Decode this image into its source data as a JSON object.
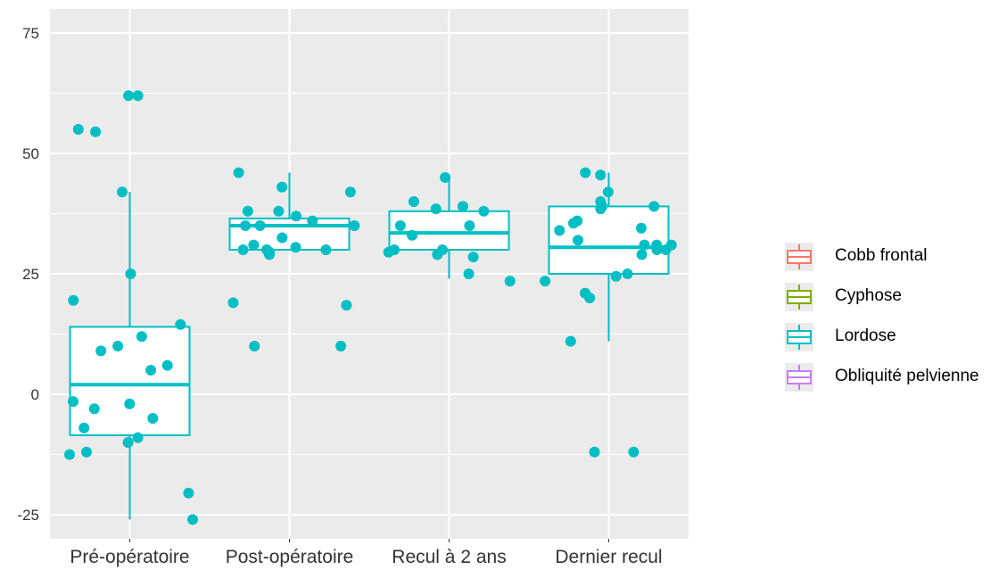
{
  "chart_data": {
    "type": "boxplot",
    "categories": [
      "Pré-opératoire",
      "Post-opératoire",
      "Recul à 2 ans",
      "Dernier recul"
    ],
    "y_ticks": [
      -25,
      0,
      25,
      50,
      75
    ],
    "ylim": [
      -30,
      80
    ],
    "grid": true,
    "legend_position": "right",
    "legend": [
      "Cobb frontal",
      "Cyphose",
      "Lordose",
      "Obliquité pelvienne"
    ],
    "legend_colors": [
      "#f8766d",
      "#7cae00",
      "#00bfc4",
      "#c77cff"
    ],
    "series": [
      {
        "name": "Lordose",
        "color": "#00bfc4",
        "boxes": [
          {
            "category": "Pré-opératoire",
            "whisker_low": -26,
            "q1": -8.5,
            "median": 2,
            "q3": 14,
            "whisker_high": 42
          },
          {
            "category": "Post-opératoire",
            "whisker_low": 30,
            "q1": 30,
            "median": 35,
            "q3": 36.5,
            "whisker_high": 46
          },
          {
            "category": "Recul à 2 ans",
            "whisker_low": 24,
            "q1": 30,
            "median": 33.5,
            "q3": 38,
            "whisker_high": 45
          },
          {
            "category": "Dernier recul",
            "whisker_low": 11,
            "q1": 25,
            "median": 30.5,
            "q3": 39,
            "whisker_high": 46
          }
        ],
        "points": [
          {
            "x": "Pré-opératoire",
            "y": 62
          },
          {
            "x": "Pré-opératoire",
            "y": 62
          },
          {
            "x": "Pré-opératoire",
            "y": 55
          },
          {
            "x": "Pré-opératoire",
            "y": 54.5
          },
          {
            "x": "Pré-opératoire",
            "y": 42
          },
          {
            "x": "Pré-opératoire",
            "y": 25
          },
          {
            "x": "Pré-opératoire",
            "y": 19.5
          },
          {
            "x": "Pré-opératoire",
            "y": 14.5
          },
          {
            "x": "Pré-opératoire",
            "y": 12
          },
          {
            "x": "Pré-opératoire",
            "y": 10
          },
          {
            "x": "Pré-opératoire",
            "y": 9
          },
          {
            "x": "Pré-opératoire",
            "y": 6
          },
          {
            "x": "Pré-opératoire",
            "y": 5
          },
          {
            "x": "Pré-opératoire",
            "y": -1.5
          },
          {
            "x": "Pré-opératoire",
            "y": -2
          },
          {
            "x": "Pré-opératoire",
            "y": -3
          },
          {
            "x": "Pré-opératoire",
            "y": -5
          },
          {
            "x": "Pré-opératoire",
            "y": -7
          },
          {
            "x": "Pré-opératoire",
            "y": -9
          },
          {
            "x": "Pré-opératoire",
            "y": -10
          },
          {
            "x": "Pré-opératoire",
            "y": -12
          },
          {
            "x": "Pré-opératoire",
            "y": -12.5
          },
          {
            "x": "Pré-opératoire",
            "y": -20.5
          },
          {
            "x": "Pré-opératoire",
            "y": -26
          },
          {
            "x": "Post-opératoire",
            "y": 46
          },
          {
            "x": "Post-opératoire",
            "y": 43
          },
          {
            "x": "Post-opératoire",
            "y": 42
          },
          {
            "x": "Post-opératoire",
            "y": 38
          },
          {
            "x": "Post-opératoire",
            "y": 38
          },
          {
            "x": "Post-opératoire",
            "y": 37
          },
          {
            "x": "Post-opératoire",
            "y": 36
          },
          {
            "x": "Post-opératoire",
            "y": 35
          },
          {
            "x": "Post-opératoire",
            "y": 35
          },
          {
            "x": "Post-opératoire",
            "y": 35
          },
          {
            "x": "Post-opératoire",
            "y": 32.5
          },
          {
            "x": "Post-opératoire",
            "y": 31
          },
          {
            "x": "Post-opératoire",
            "y": 30.5
          },
          {
            "x": "Post-opératoire",
            "y": 30
          },
          {
            "x": "Post-opératoire",
            "y": 30
          },
          {
            "x": "Post-opératoire",
            "y": 30
          },
          {
            "x": "Post-opératoire",
            "y": 29.5
          },
          {
            "x": "Post-opératoire",
            "y": 29
          },
          {
            "x": "Post-opératoire",
            "y": 19
          },
          {
            "x": "Post-opératoire",
            "y": 18.5
          },
          {
            "x": "Post-opératoire",
            "y": 10
          },
          {
            "x": "Post-opératoire",
            "y": 10
          },
          {
            "x": "Recul à 2 ans",
            "y": 45
          },
          {
            "x": "Recul à 2 ans",
            "y": 40
          },
          {
            "x": "Recul à 2 ans",
            "y": 39
          },
          {
            "x": "Recul à 2 ans",
            "y": 38.5
          },
          {
            "x": "Recul à 2 ans",
            "y": 38
          },
          {
            "x": "Recul à 2 ans",
            "y": 35
          },
          {
            "x": "Recul à 2 ans",
            "y": 35
          },
          {
            "x": "Recul à 2 ans",
            "y": 33
          },
          {
            "x": "Recul à 2 ans",
            "y": 30
          },
          {
            "x": "Recul à 2 ans",
            "y": 30
          },
          {
            "x": "Recul à 2 ans",
            "y": 29.5
          },
          {
            "x": "Recul à 2 ans",
            "y": 29
          },
          {
            "x": "Recul à 2 ans",
            "y": 28.5
          },
          {
            "x": "Recul à 2 ans",
            "y": 25
          },
          {
            "x": "Recul à 2 ans",
            "y": 23.5
          },
          {
            "x": "Dernier recul",
            "y": 46
          },
          {
            "x": "Dernier recul",
            "y": 45.5
          },
          {
            "x": "Dernier recul",
            "y": 42
          },
          {
            "x": "Dernier recul",
            "y": 40
          },
          {
            "x": "Dernier recul",
            "y": 39
          },
          {
            "x": "Dernier recul",
            "y": 39
          },
          {
            "x": "Dernier recul",
            "y": 38.5
          },
          {
            "x": "Dernier recul",
            "y": 36
          },
          {
            "x": "Dernier recul",
            "y": 35.5
          },
          {
            "x": "Dernier recul",
            "y": 34.5
          },
          {
            "x": "Dernier recul",
            "y": 34
          },
          {
            "x": "Dernier recul",
            "y": 32
          },
          {
            "x": "Dernier recul",
            "y": 31
          },
          {
            "x": "Dernier recul",
            "y": 31
          },
          {
            "x": "Dernier recul",
            "y": 31
          },
          {
            "x": "Dernier recul",
            "y": 30
          },
          {
            "x": "Dernier recul",
            "y": 30
          },
          {
            "x": "Dernier recul",
            "y": 29
          },
          {
            "x": "Dernier recul",
            "y": 25
          },
          {
            "x": "Dernier recul",
            "y": 24.5
          },
          {
            "x": "Dernier recul",
            "y": 23.5
          },
          {
            "x": "Dernier recul",
            "y": 21
          },
          {
            "x": "Dernier recul",
            "y": 20
          },
          {
            "x": "Dernier recul",
            "y": 11
          },
          {
            "x": "Dernier recul",
            "y": -12
          },
          {
            "x": "Dernier recul",
            "y": -12
          }
        ]
      }
    ]
  }
}
